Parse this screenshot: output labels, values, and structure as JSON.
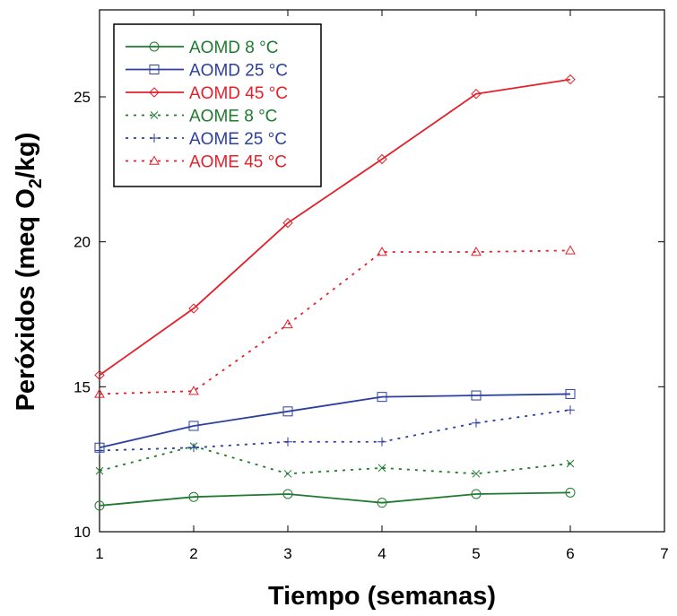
{
  "chart_data": {
    "type": "line",
    "title": "",
    "xlabel": "Tiempo (semanas)",
    "ylabel_prefix": "Peróxidos (meq O",
    "ylabel_sub": "2",
    "ylabel_suffix": "/kg)",
    "xlim": [
      1,
      7
    ],
    "ylim": [
      10,
      28
    ],
    "x_ticks": [
      1,
      2,
      3,
      4,
      5,
      6,
      7
    ],
    "y_ticks": [
      10,
      15,
      20,
      25
    ],
    "grid": false,
    "legend_position": "top-left",
    "x": [
      1,
      2,
      3,
      4,
      5,
      6
    ],
    "series": [
      {
        "name": "AOMD 8 °C",
        "color": "#1e7a2e",
        "dash": "solid",
        "marker": "circle",
        "values": [
          10.9,
          11.2,
          11.3,
          11.0,
          11.3,
          11.35
        ]
      },
      {
        "name": "AOMD 25 °C",
        "color": "#2b3f9e",
        "dash": "solid",
        "marker": "square",
        "values": [
          12.9,
          13.65,
          14.15,
          14.65,
          14.7,
          14.75
        ]
      },
      {
        "name": "AOMD 45 °C",
        "color": "#e3202a",
        "dash": "solid",
        "marker": "diamond",
        "values": [
          15.4,
          17.7,
          20.65,
          22.85,
          25.1,
          25.6
        ]
      },
      {
        "name": "AOME 8 °C",
        "color": "#1e7a2e",
        "dash": "dotted",
        "marker": "x",
        "values": [
          12.1,
          12.95,
          12.0,
          12.2,
          12.0,
          12.35
        ]
      },
      {
        "name": "AOME 25 °C",
        "color": "#2b3f9e",
        "dash": "dotted",
        "marker": "plus",
        "values": [
          12.8,
          12.9,
          13.1,
          13.1,
          13.75,
          14.2
        ]
      },
      {
        "name": "AOME 45 °C",
        "color": "#e3202a",
        "dash": "dotted",
        "marker": "triangle",
        "values": [
          14.75,
          14.85,
          17.15,
          19.65,
          19.65,
          19.7
        ]
      }
    ]
  }
}
